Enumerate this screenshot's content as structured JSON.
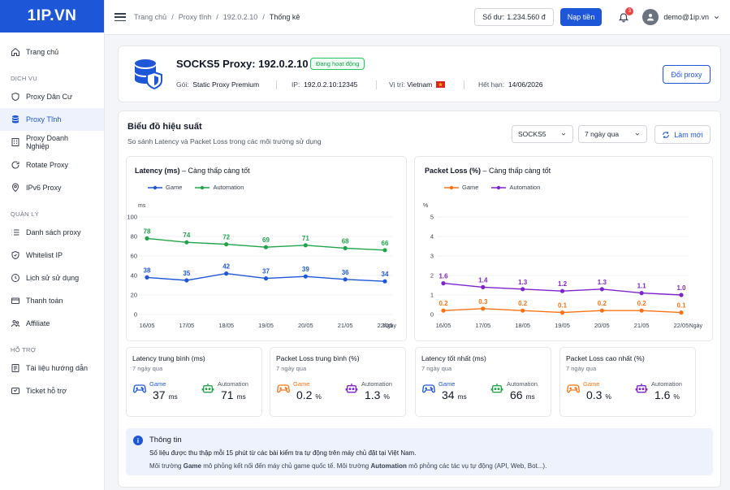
{
  "app": {
    "logo": "1IP.VN"
  },
  "sidebar": {
    "items_top": [
      {
        "label": "Trang chủ",
        "icon": "home-icon"
      }
    ],
    "sections": [
      {
        "title": "DỊCH VỤ",
        "items": [
          {
            "label": "Proxy Dân Cư",
            "icon": "shield-icon"
          },
          {
            "label": "Proxy Tĩnh",
            "icon": "database-icon",
            "active": true
          },
          {
            "label": "Proxy Doanh Nghiệp",
            "icon": "building-icon"
          },
          {
            "label": "Rotate Proxy",
            "icon": "rotate-icon"
          },
          {
            "label": "IPv6 Proxy",
            "icon": "pin-icon"
          }
        ]
      },
      {
        "title": "QUẢN LÝ",
        "items": [
          {
            "label": "Danh sách proxy",
            "icon": "list-icon"
          },
          {
            "label": "Whitelist IP",
            "icon": "shield-check-icon"
          },
          {
            "label": "Lịch sử sử dụng",
            "icon": "clock-icon"
          },
          {
            "label": "Thanh toán",
            "icon": "wallet-icon"
          },
          {
            "label": "Affiliate",
            "icon": "users-icon"
          }
        ]
      },
      {
        "title": "HỖ TRỢ",
        "items": [
          {
            "label": "Tài liệu hướng dẫn",
            "icon": "book-icon"
          },
          {
            "label": "Ticket hỗ trợ",
            "icon": "ticket-icon"
          }
        ]
      }
    ]
  },
  "header": {
    "breadcrumb": [
      "Trang chủ",
      "Proxy tĩnh",
      "192.0.2.10",
      "Thống kê"
    ],
    "balance_label": "Số dư:",
    "balance_value": "1.234.560 đ",
    "topup_label": "Nạp tiền",
    "notification_count": "3",
    "user_email": "demo@1ip.vn"
  },
  "proxy": {
    "title": "SOCKS5 Proxy: 192.0.2.10",
    "status": "Đang hoạt động",
    "package_label": "Gói:",
    "package_value": "Static Proxy Premium",
    "ip_label": "IP:",
    "ip_value": "192.0.2.10:12345",
    "location_label": "Vị trí:",
    "location_value": "Vietnam",
    "expiry_label": "Hết hạn:",
    "expiry_value": "14/06/2026",
    "change_button": "Đổi proxy"
  },
  "performance": {
    "title": "Biểu đồ hiệu suất",
    "subtitle": "So sánh Latency và Packet Loss trong các môi trường sử dụng",
    "protocol_select": "SOCKS5",
    "range_select": "7 ngày qua",
    "refresh_button": "Làm mới"
  },
  "colors": {
    "game": "#1e56d8",
    "automation": "#22a34a",
    "loss_game": "#f97316",
    "loss_automation": "#7e22ce",
    "accent": "#1e56d8"
  },
  "chart_data": [
    {
      "type": "line",
      "title": "Latency (ms)",
      "subtitle": "– Càng thấp càng tốt",
      "ylabel": "ms",
      "xlabel": "Ngày",
      "ylim": [
        0,
        100
      ],
      "yticks": [
        0,
        20,
        40,
        60,
        80,
        100
      ],
      "categories": [
        "16/05",
        "17/05",
        "18/05",
        "19/05",
        "20/05",
        "21/05",
        "22/05"
      ],
      "series": [
        {
          "name": "Game",
          "values": [
            38,
            35,
            42,
            37,
            39,
            36,
            34
          ],
          "labels": [
            "38",
            "35",
            "42",
            "37",
            "39",
            "36",
            "34"
          ]
        },
        {
          "name": "Automation",
          "values": [
            78,
            74,
            72,
            69,
            71,
            68,
            66
          ],
          "labels": [
            "78",
            "74",
            "72",
            "69",
            "71",
            "68",
            "66"
          ]
        }
      ],
      "grid": true,
      "legend": "top-left"
    },
    {
      "type": "line",
      "title": "Packet Loss (%)",
      "subtitle": "– Càng thấp càng tốt",
      "ylabel": "%",
      "xlabel": "Ngày",
      "ylim": [
        0,
        5
      ],
      "yticks": [
        0,
        1,
        2,
        3,
        4,
        5
      ],
      "categories": [
        "16/05",
        "17/05",
        "18/05",
        "19/05",
        "20/05",
        "21/05",
        "22/05"
      ],
      "series": [
        {
          "name": "Game",
          "values": [
            0.2,
            0.3,
            0.2,
            0.1,
            0.2,
            0.2,
            0.1
          ],
          "labels": [
            "0.2",
            "0.3",
            "0.2",
            "0.1",
            "0.2",
            "0.2",
            "0.1"
          ]
        },
        {
          "name": "Automation",
          "values": [
            1.6,
            1.4,
            1.3,
            1.2,
            1.3,
            1.1,
            1.0
          ],
          "labels": [
            "1.6",
            "1.4",
            "1.3",
            "1.2",
            "1.3",
            "1.1",
            "1.0"
          ]
        }
      ],
      "grid": true,
      "legend": "top-left"
    }
  ],
  "stats": [
    {
      "title": "Latency trung bình (ms)",
      "sub": "7 ngày qua",
      "a_label": "Game",
      "a_value": "37",
      "a_unit": "ms",
      "b_label": "Automation",
      "b_value": "71",
      "b_unit": "ms",
      "kind": "latency"
    },
    {
      "title": "Packet Loss trung bình (%)",
      "sub": "7 ngày qua",
      "a_label": "Game",
      "a_value": "0.2",
      "a_unit": "%",
      "b_label": "Automation",
      "b_value": "1.3",
      "b_unit": "%",
      "kind": "loss"
    },
    {
      "title": "Latency tốt nhất (ms)",
      "sub": "7 ngày qua",
      "a_label": "Game",
      "a_value": "34",
      "a_unit": "ms",
      "b_label": "Automation",
      "b_value": "66",
      "b_unit": "ms",
      "kind": "latency"
    },
    {
      "title": "Packet Loss cao nhất (%)",
      "sub": "7 ngày qua",
      "a_label": "Game",
      "a_value": "0.3",
      "a_unit": "%",
      "b_label": "Automation",
      "b_value": "1.6",
      "b_unit": "%",
      "kind": "loss"
    }
  ],
  "info": {
    "title": "Thông tin",
    "line1": "Số liệu được thu thập mỗi 15 phút từ các bài kiểm tra tự động trên máy chủ đặt tại Việt Nam.",
    "line2_a": "Môi trường ",
    "line2_b": "Game",
    "line2_c": " mô phỏng kết nối đến máy chủ game quốc tế. Môi trường ",
    "line2_d": "Automation",
    "line2_e": " mô phỏng các tác vụ tự động (API, Web, Bot...)."
  }
}
